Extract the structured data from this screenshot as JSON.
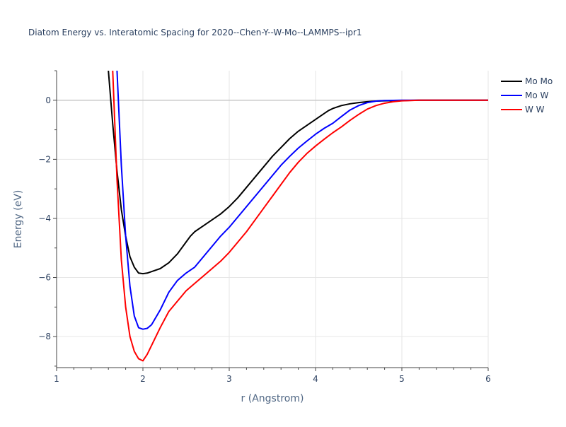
{
  "chart_data": {
    "type": "line",
    "title": "Diatom Energy vs. Interatomic Spacing for 2020--Chen-Y--W-Mo--LAMMPS--ipr1",
    "xlabel": "r (Angstrom)",
    "ylabel": "Energy (eV)",
    "xlim": [
      1,
      6
    ],
    "ylim": [
      -9.05,
      1.0
    ],
    "xticks": [
      1,
      2,
      3,
      4,
      5,
      6
    ],
    "xtick_labels": [
      "1",
      "2",
      "3",
      "4",
      "5",
      "6"
    ],
    "yticks": [
      0,
      -2,
      -4,
      -6,
      -8
    ],
    "ytick_labels": [
      "0",
      "−2",
      "−4",
      "−6",
      "−8"
    ],
    "grid": true,
    "legend_position": "top-right",
    "series": [
      {
        "name": "Mo Mo",
        "color": "#000000",
        "x": [
          1.6,
          1.65,
          1.7,
          1.75,
          1.8,
          1.85,
          1.9,
          1.95,
          2.0,
          2.05,
          2.1,
          2.2,
          2.3,
          2.4,
          2.5,
          2.55,
          2.6,
          2.7,
          2.8,
          2.9,
          3.0,
          3.1,
          3.2,
          3.3,
          3.4,
          3.5,
          3.6,
          3.7,
          3.8,
          3.9,
          4.0,
          4.1,
          4.15,
          4.2,
          4.3,
          4.4,
          4.5,
          4.6,
          4.7,
          4.8,
          5.0,
          5.2,
          5.5,
          6.0
        ],
        "y": [
          1.0,
          -0.8,
          -2.4,
          -3.7,
          -4.6,
          -5.3,
          -5.65,
          -5.85,
          -5.87,
          -5.85,
          -5.8,
          -5.7,
          -5.5,
          -5.2,
          -4.8,
          -4.6,
          -4.45,
          -4.25,
          -4.05,
          -3.85,
          -3.6,
          -3.3,
          -2.95,
          -2.6,
          -2.25,
          -1.9,
          -1.6,
          -1.3,
          -1.05,
          -0.85,
          -0.65,
          -0.45,
          -0.35,
          -0.28,
          -0.18,
          -0.12,
          -0.08,
          -0.05,
          -0.03,
          -0.02,
          -0.01,
          0,
          0,
          0
        ]
      },
      {
        "name": "Mo W",
        "color": "#0000ff",
        "x": [
          1.7,
          1.75,
          1.8,
          1.85,
          1.9,
          1.95,
          2.0,
          2.05,
          2.1,
          2.2,
          2.3,
          2.4,
          2.5,
          2.6,
          2.7,
          2.8,
          2.9,
          3.0,
          3.1,
          3.2,
          3.3,
          3.4,
          3.5,
          3.6,
          3.7,
          3.8,
          3.9,
          4.0,
          4.1,
          4.2,
          4.3,
          4.4,
          4.5,
          4.6,
          4.7,
          4.8,
          5.0,
          5.2,
          5.5,
          6.0
        ],
        "y": [
          1.0,
          -2.2,
          -4.6,
          -6.3,
          -7.3,
          -7.7,
          -7.75,
          -7.72,
          -7.6,
          -7.1,
          -6.5,
          -6.1,
          -5.85,
          -5.65,
          -5.3,
          -4.95,
          -4.6,
          -4.3,
          -3.95,
          -3.6,
          -3.25,
          -2.9,
          -2.55,
          -2.2,
          -1.9,
          -1.62,
          -1.38,
          -1.15,
          -0.95,
          -0.78,
          -0.55,
          -0.33,
          -0.18,
          -0.08,
          -0.03,
          -0.01,
          0,
          0,
          0,
          0
        ]
      },
      {
        "name": "W W",
        "color": "#ff0000",
        "x": [
          1.65,
          1.7,
          1.75,
          1.8,
          1.85,
          1.9,
          1.95,
          2.0,
          2.05,
          2.1,
          2.2,
          2.3,
          2.4,
          2.5,
          2.6,
          2.7,
          2.8,
          2.9,
          3.0,
          3.1,
          3.2,
          3.3,
          3.4,
          3.5,
          3.6,
          3.7,
          3.8,
          3.9,
          4.0,
          4.1,
          4.2,
          4.3,
          4.4,
          4.5,
          4.6,
          4.7,
          4.8,
          4.9,
          5.0,
          5.1,
          5.2,
          5.5,
          6.0
        ],
        "y": [
          1.0,
          -2.7,
          -5.4,
          -7.0,
          -8.0,
          -8.5,
          -8.75,
          -8.82,
          -8.6,
          -8.3,
          -7.7,
          -7.15,
          -6.8,
          -6.45,
          -6.2,
          -5.95,
          -5.7,
          -5.45,
          -5.15,
          -4.8,
          -4.45,
          -4.05,
          -3.65,
          -3.25,
          -2.85,
          -2.45,
          -2.1,
          -1.8,
          -1.55,
          -1.32,
          -1.1,
          -0.9,
          -0.68,
          -0.48,
          -0.3,
          -0.18,
          -0.1,
          -0.05,
          -0.02,
          -0.01,
          0,
          0,
          0
        ]
      }
    ]
  }
}
